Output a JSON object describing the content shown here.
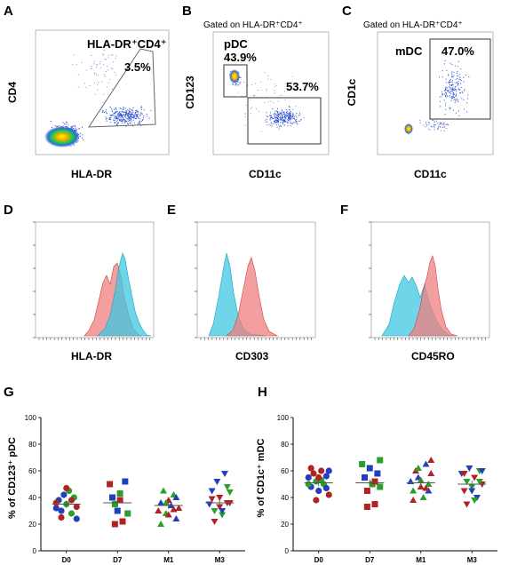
{
  "panels": {
    "A": {
      "letter": "A",
      "xlabel": "HLA-DR",
      "ylabel": "CD4",
      "gate_label": "HLA-DR⁺CD4⁺",
      "gate_pct": "3.5%"
    },
    "B": {
      "letter": "B",
      "header": "Gated on  HLA-DR⁺CD4⁺",
      "xlabel": "CD11c",
      "ylabel": "CD123",
      "pop_label": "pDC",
      "pct_pdc": "43.9%",
      "pct_other": "53.7%"
    },
    "C": {
      "letter": "C",
      "header": "Gated on  HLA-DR⁺CD4⁺",
      "xlabel": "CD11c",
      "ylabel": "CD1c",
      "pop_label": "mDC",
      "pct_mdc": "47.0%"
    },
    "D": {
      "letter": "D",
      "xlabel": "HLA-DR"
    },
    "E": {
      "letter": "E",
      "xlabel": "CD303"
    },
    "F": {
      "letter": "F",
      "xlabel": "CD45RO"
    }
  },
  "hist_colors": {
    "cyan": "#3ec8e0",
    "red": "#f07f7f"
  },
  "chart_data": [
    {
      "type": "scatter",
      "panel": "G",
      "letter": "G",
      "ylabel": "% of CD123⁺ pDC",
      "categories": [
        "D0",
        "D7",
        "M1",
        "M3"
      ],
      "ylim": [
        0,
        100
      ],
      "yticks": [
        "0",
        "20",
        "40",
        "60",
        "80",
        "100"
      ],
      "means": [
        35,
        36,
        34,
        36
      ],
      "points": [
        [
          [
            0.8,
            32,
            "#1f3fbf",
            "o"
          ],
          [
            0.85,
            38,
            "#1f3fbf",
            "o"
          ],
          [
            0.9,
            30,
            "#1f3fbf",
            "o"
          ],
          [
            0.95,
            42,
            "#1f3fbf",
            "o"
          ],
          [
            1.0,
            35,
            "#2aa02a",
            "o"
          ],
          [
            1.05,
            45,
            "#2aa02a",
            "o"
          ],
          [
            1.1,
            28,
            "#2aa02a",
            "o"
          ],
          [
            1.15,
            40,
            "#2aa02a",
            "o"
          ],
          [
            1.2,
            33,
            "#b22222",
            "o"
          ],
          [
            0.8,
            36,
            "#b22222",
            "o"
          ],
          [
            0.9,
            25,
            "#b22222",
            "o"
          ],
          [
            1.0,
            47,
            "#b22222",
            "o"
          ],
          [
            1.1,
            38,
            "#b22222",
            "o"
          ],
          [
            1.2,
            24,
            "#1f3fbf",
            "o"
          ]
        ],
        [
          [
            1.85,
            50,
            "#b22222",
            "s"
          ],
          [
            1.9,
            40,
            "#1f3fbf",
            "s"
          ],
          [
            1.95,
            35,
            "#2aa02a",
            "s"
          ],
          [
            2.0,
            30,
            "#1f3fbf",
            "s"
          ],
          [
            2.05,
            43,
            "#2aa02a",
            "s"
          ],
          [
            2.1,
            22,
            "#b22222",
            "s"
          ],
          [
            2.15,
            52,
            "#1f3fbf",
            "s"
          ],
          [
            2.2,
            28,
            "#2aa02a",
            "s"
          ],
          [
            1.95,
            20,
            "#b22222",
            "s"
          ],
          [
            2.05,
            38,
            "#b22222",
            "s"
          ]
        ],
        [
          [
            2.8,
            30,
            "#b22222",
            "^"
          ],
          [
            2.85,
            36,
            "#1f3fbf",
            "^"
          ],
          [
            2.9,
            45,
            "#2aa02a",
            "^"
          ],
          [
            2.95,
            28,
            "#2aa02a",
            "^"
          ],
          [
            3.0,
            38,
            "#b22222",
            "^"
          ],
          [
            3.05,
            34,
            "#1f3fbf",
            "^"
          ],
          [
            3.1,
            42,
            "#2aa02a",
            "^"
          ],
          [
            3.15,
            24,
            "#1f3fbf",
            "^"
          ],
          [
            3.2,
            32,
            "#b22222",
            "^"
          ],
          [
            2.85,
            20,
            "#2aa02a",
            "^"
          ],
          [
            3.0,
            27,
            "#b22222",
            "^"
          ],
          [
            3.15,
            40,
            "#1f3fbf",
            "^"
          ],
          [
            2.95,
            36,
            "#2aa02a",
            "^"
          ],
          [
            3.1,
            31,
            "#b22222",
            "^"
          ]
        ],
        [
          [
            3.8,
            35,
            "#1f3fbf",
            "v"
          ],
          [
            3.85,
            45,
            "#1f3fbf",
            "v"
          ],
          [
            3.9,
            30,
            "#2aa02a",
            "v"
          ],
          [
            3.95,
            52,
            "#1f3fbf",
            "v"
          ],
          [
            4.0,
            40,
            "#b22222",
            "v"
          ],
          [
            4.05,
            27,
            "#2aa02a",
            "v"
          ],
          [
            4.1,
            58,
            "#1f3fbf",
            "v"
          ],
          [
            4.15,
            36,
            "#b22222",
            "v"
          ],
          [
            4.2,
            44,
            "#2aa02a",
            "v"
          ],
          [
            3.9,
            22,
            "#b22222",
            "v"
          ],
          [
            4.0,
            33,
            "#b22222",
            "v"
          ],
          [
            4.15,
            48,
            "#2aa02a",
            "v"
          ],
          [
            3.85,
            39,
            "#b22222",
            "v"
          ],
          [
            4.05,
            30,
            "#1f3fbf",
            "v"
          ],
          [
            4.2,
            36,
            "#b22222",
            "v"
          ]
        ]
      ]
    },
    {
      "type": "scatter",
      "panel": "H",
      "letter": "H",
      "ylabel": "% of CD1c⁺ mDC",
      "categories": [
        "D0",
        "D7",
        "M1",
        "M3"
      ],
      "ylim": [
        0,
        100
      ],
      "yticks": [
        "0",
        "20",
        "40",
        "60",
        "80",
        "100"
      ],
      "means": [
        51,
        51,
        51,
        50
      ],
      "points": [
        [
          [
            0.8,
            55,
            "#1f3fbf",
            "o"
          ],
          [
            0.85,
            48,
            "#1f3fbf",
            "o"
          ],
          [
            0.9,
            58,
            "#b22222",
            "o"
          ],
          [
            0.95,
            52,
            "#2aa02a",
            "o"
          ],
          [
            1.0,
            45,
            "#1f3fbf",
            "o"
          ],
          [
            1.05,
            60,
            "#b22222",
            "o"
          ],
          [
            1.1,
            50,
            "#2aa02a",
            "o"
          ],
          [
            1.15,
            56,
            "#1f3fbf",
            "o"
          ],
          [
            1.2,
            42,
            "#b22222",
            "o"
          ],
          [
            0.85,
            62,
            "#b22222",
            "o"
          ],
          [
            0.95,
            38,
            "#b22222",
            "o"
          ],
          [
            1.05,
            53,
            "#2aa02a",
            "o"
          ],
          [
            1.15,
            47,
            "#1f3fbf",
            "o"
          ],
          [
            1.2,
            60,
            "#1f3fbf",
            "o"
          ],
          [
            0.8,
            50,
            "#2aa02a",
            "o"
          ],
          [
            1.0,
            55,
            "#b22222",
            "o"
          ]
        ],
        [
          [
            1.85,
            65,
            "#2aa02a",
            "s"
          ],
          [
            1.9,
            55,
            "#1f3fbf",
            "s"
          ],
          [
            1.95,
            45,
            "#b22222",
            "s"
          ],
          [
            2.0,
            62,
            "#1f3fbf",
            "s"
          ],
          [
            2.05,
            50,
            "#2aa02a",
            "s"
          ],
          [
            2.1,
            35,
            "#b22222",
            "s"
          ],
          [
            2.15,
            58,
            "#1f3fbf",
            "s"
          ],
          [
            2.2,
            48,
            "#2aa02a",
            "s"
          ],
          [
            1.95,
            33,
            "#b22222",
            "s"
          ],
          [
            2.1,
            52,
            "#b22222",
            "s"
          ],
          [
            2.2,
            68,
            "#2aa02a",
            "s"
          ]
        ],
        [
          [
            2.8,
            52,
            "#1f3fbf",
            "^"
          ],
          [
            2.85,
            45,
            "#2aa02a",
            "^"
          ],
          [
            2.9,
            60,
            "#b22222",
            "^"
          ],
          [
            2.95,
            55,
            "#1f3fbf",
            "^"
          ],
          [
            3.0,
            48,
            "#b22222",
            "^"
          ],
          [
            3.05,
            40,
            "#2aa02a",
            "^"
          ],
          [
            3.1,
            65,
            "#1f3fbf",
            "^"
          ],
          [
            3.15,
            50,
            "#2aa02a",
            "^"
          ],
          [
            3.2,
            58,
            "#b22222",
            "^"
          ],
          [
            2.85,
            38,
            "#b22222",
            "^"
          ],
          [
            3.0,
            53,
            "#2aa02a",
            "^"
          ],
          [
            3.15,
            45,
            "#1f3fbf",
            "^"
          ],
          [
            2.95,
            62,
            "#2aa02a",
            "^"
          ],
          [
            3.1,
            47,
            "#b22222",
            "^"
          ],
          [
            3.2,
            68,
            "#b22222",
            "^"
          ]
        ],
        [
          [
            3.8,
            58,
            "#1f3fbf",
            "v"
          ],
          [
            3.85,
            45,
            "#b22222",
            "v"
          ],
          [
            3.9,
            52,
            "#2aa02a",
            "v"
          ],
          [
            3.95,
            62,
            "#1f3fbf",
            "v"
          ],
          [
            4.0,
            48,
            "#2aa02a",
            "v"
          ],
          [
            4.05,
            55,
            "#b22222",
            "v"
          ],
          [
            4.1,
            40,
            "#1f3fbf",
            "v"
          ],
          [
            4.15,
            60,
            "#2aa02a",
            "v"
          ],
          [
            4.2,
            50,
            "#b22222",
            "v"
          ],
          [
            3.9,
            35,
            "#b22222",
            "v"
          ],
          [
            4.0,
            45,
            "#1f3fbf",
            "v"
          ],
          [
            4.15,
            52,
            "#2aa02a",
            "v"
          ],
          [
            3.85,
            58,
            "#b22222",
            "v"
          ],
          [
            4.05,
            38,
            "#2aa02a",
            "v"
          ],
          [
            4.2,
            60,
            "#1f3fbf",
            "v"
          ]
        ]
      ]
    }
  ]
}
